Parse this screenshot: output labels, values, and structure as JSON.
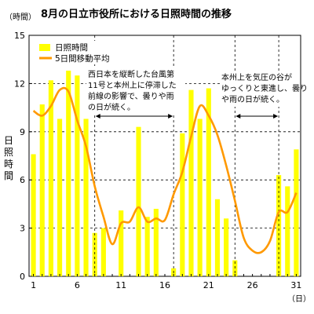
{
  "chart_data": {
    "type": "bar",
    "title": "8月の日立市役所における日照時間の推移",
    "ylabel": "日照時間",
    "y_unit": "（時間）",
    "x_unit": "（日）",
    "ylim": [
      0,
      15
    ],
    "yticks": [
      0,
      3,
      6,
      9,
      12,
      15
    ],
    "xticks": [
      1,
      6,
      11,
      16,
      21,
      26,
      31
    ],
    "grid": "horizontal dashed",
    "legend_position": "top-left",
    "x": [
      1,
      2,
      3,
      4,
      5,
      6,
      7,
      8,
      9,
      10,
      11,
      12,
      13,
      14,
      15,
      16,
      17,
      18,
      19,
      20,
      21,
      22,
      23,
      24,
      25,
      26,
      27,
      28,
      29,
      30,
      31
    ],
    "series": [
      {
        "name": "日照時間",
        "type": "bar",
        "color": "#ffff00",
        "values": [
          7.6,
          10.7,
          12.2,
          9.8,
          12.8,
          12.5,
          9.8,
          2.7,
          3.0,
          0.0,
          4.1,
          0.0,
          9.3,
          3.7,
          4.2,
          0.0,
          0.5,
          8.9,
          11.6,
          9.8,
          11.7,
          4.8,
          3.6,
          1.0,
          0.0,
          0.0,
          0.0,
          0.0,
          6.3,
          5.6,
          7.9
        ]
      },
      {
        "name": "5日間移動平均",
        "type": "line",
        "color": "#ff9900",
        "values": [
          10.3,
          10.0,
          10.6,
          11.6,
          11.5,
          9.7,
          8.1,
          5.6,
          3.7,
          2.0,
          3.3,
          3.4,
          4.3,
          3.4,
          3.6,
          3.5,
          5.1,
          6.5,
          8.7,
          10.6,
          10.0,
          8.8,
          6.9,
          4.7,
          2.4,
          1.6,
          1.5,
          2.2,
          4.0,
          4.0,
          5.2
        ]
      }
    ],
    "annotations": [
      {
        "lines": [
          "西日本を縦断した台風第",
          "11号と本州上に停滞した",
          "前線の影響で、曇りや雨",
          "の日が続く。"
        ],
        "arrow_from_day": 8,
        "arrow_to_day": 17
      },
      {
        "lines": [
          "本州上を気圧の谷が",
          "ゆっくりと東進し、曇り",
          "や雨の日が続く。"
        ],
        "arrow_from_day": 24,
        "arrow_to_day": 29
      }
    ]
  }
}
